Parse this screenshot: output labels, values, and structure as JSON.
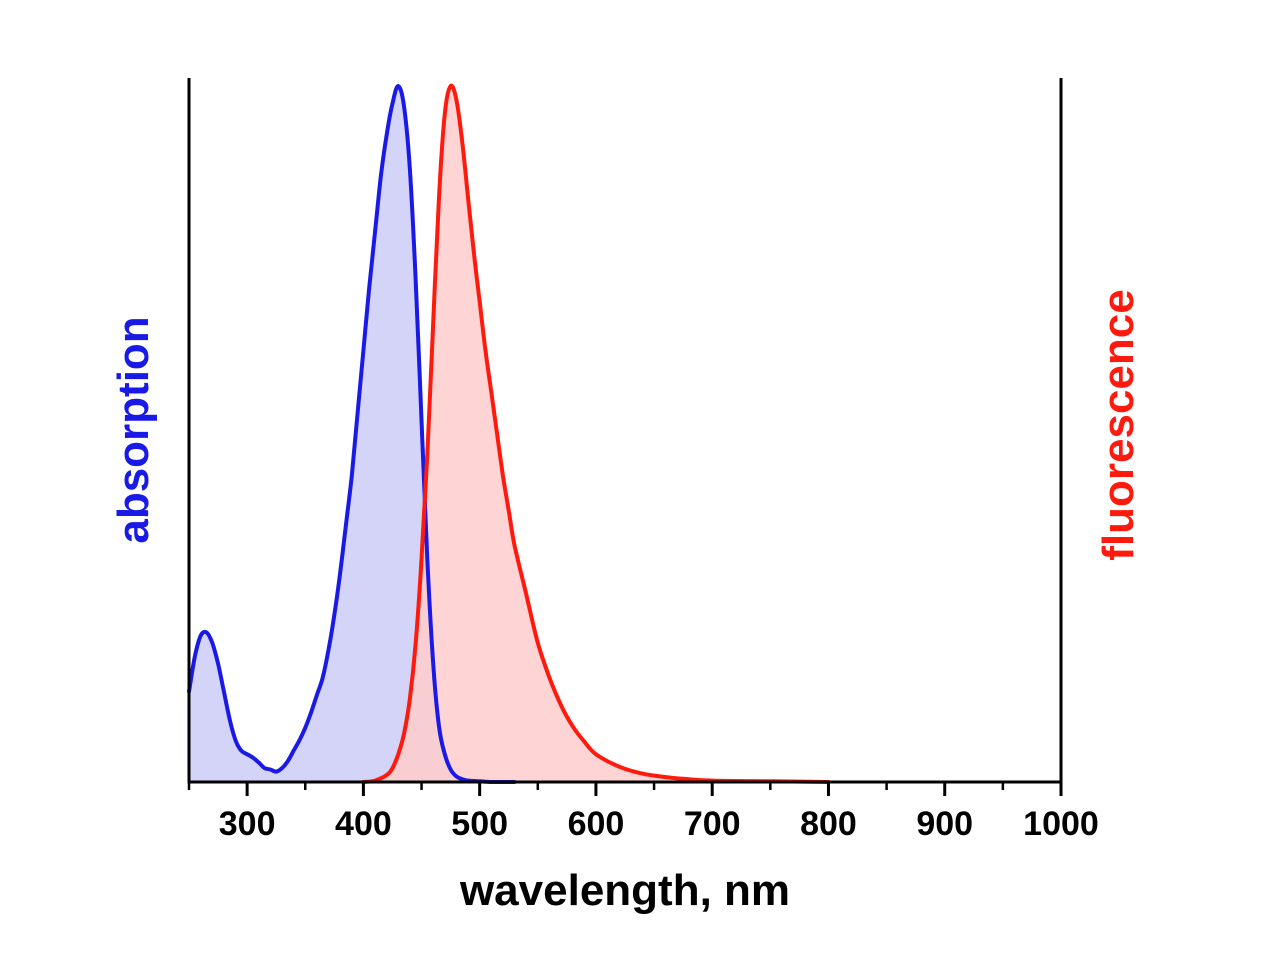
{
  "chart_data": {
    "type": "area",
    "xlabel": "wavelength, nm",
    "ylabel_left": "absorption",
    "ylabel_right": "fluorescence",
    "xlim": [
      250,
      1000
    ],
    "ylim": [
      0,
      1
    ],
    "x_ticks": [
      300,
      400,
      500,
      600,
      700,
      800,
      900,
      1000
    ],
    "x_minor_ticks": [
      250,
      350,
      450,
      550,
      650,
      750,
      850,
      950
    ],
    "grid": false,
    "colors": {
      "absorption_line": "#1a1ae6",
      "absorption_fill": "#ccccf7",
      "fluorescence_line": "#ff1a0d",
      "fluorescence_fill": "#ffcccc"
    },
    "series": [
      {
        "key": "absorption",
        "x": [
          250,
          255,
          260,
          265,
          270,
          275,
          280,
          285,
          290,
          295,
          300,
          305,
          310,
          315,
          320,
          325,
          330,
          335,
          340,
          345,
          350,
          355,
          360,
          365,
          370,
          375,
          380,
          385,
          390,
          395,
          400,
          405,
          410,
          415,
          420,
          425,
          430,
          435,
          440,
          445,
          450,
          455,
          460,
          465,
          470,
          475,
          480,
          485,
          490,
          500,
          510,
          520,
          530
        ],
        "values": [
          0.13,
          0.18,
          0.21,
          0.215,
          0.2,
          0.17,
          0.13,
          0.09,
          0.06,
          0.045,
          0.04,
          0.035,
          0.028,
          0.02,
          0.018,
          0.015,
          0.02,
          0.03,
          0.045,
          0.06,
          0.078,
          0.1,
          0.125,
          0.15,
          0.19,
          0.24,
          0.3,
          0.37,
          0.44,
          0.53,
          0.62,
          0.71,
          0.79,
          0.87,
          0.93,
          0.975,
          1.0,
          0.97,
          0.88,
          0.72,
          0.52,
          0.32,
          0.17,
          0.08,
          0.04,
          0.018,
          0.008,
          0.004,
          0.002,
          0.001,
          0.0,
          0.0,
          0.0
        ]
      },
      {
        "key": "fluorescence",
        "x": [
          400,
          410,
          420,
          425,
          430,
          435,
          440,
          445,
          450,
          455,
          460,
          465,
          470,
          475,
          480,
          485,
          490,
          495,
          500,
          505,
          510,
          515,
          520,
          525,
          530,
          540,
          550,
          560,
          570,
          580,
          590,
          600,
          620,
          640,
          660,
          680,
          700,
          750,
          800
        ],
        "values": [
          0.0,
          0.002,
          0.01,
          0.02,
          0.04,
          0.07,
          0.12,
          0.2,
          0.32,
          0.47,
          0.66,
          0.84,
          0.96,
          1.0,
          0.98,
          0.92,
          0.84,
          0.76,
          0.69,
          0.62,
          0.56,
          0.5,
          0.44,
          0.39,
          0.34,
          0.27,
          0.2,
          0.15,
          0.11,
          0.08,
          0.058,
          0.04,
          0.022,
          0.012,
          0.007,
          0.004,
          0.002,
          0.001,
          0.0
        ]
      }
    ]
  }
}
